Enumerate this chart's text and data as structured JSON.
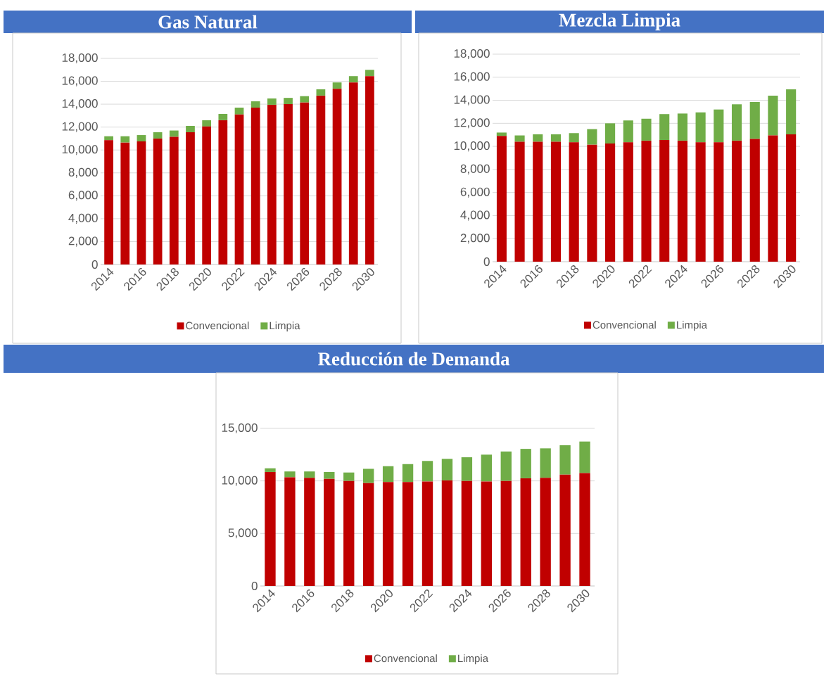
{
  "chart_data": [
    {
      "type": "bar",
      "title": "Gas Natural",
      "stacked": true,
      "grid": "y",
      "legend": "bottom",
      "categories": [
        "2014",
        null,
        "2016",
        null,
        "2018",
        null,
        "2020",
        null,
        "2022",
        null,
        "2024",
        null,
        "2026",
        null,
        "2028",
        null,
        "2030"
      ],
      "ylim": [
        0,
        18000
      ],
      "yticks": [
        0,
        {
          "value": 2000,
          "label": "2,000"
        },
        {
          "value": 4000,
          "label": "4,000"
        },
        {
          "value": 6000,
          "label": "6,000"
        },
        {
          "value": 8000,
          "label": "8,000"
        },
        {
          "value": 10000,
          "label": "10,000"
        },
        {
          "value": 12000,
          "label": "12,000"
        },
        {
          "value": 14000,
          "label": "14,000"
        },
        {
          "value": 16000,
          "label": "16,000"
        },
        {
          "value": 18000,
          "label": "18,000"
        }
      ],
      "series": [
        {
          "name": "Convencional",
          "color": "#c00000",
          "values": [
            10850,
            10650,
            10750,
            11000,
            11150,
            11550,
            12050,
            12600,
            13100,
            13700,
            13950,
            14000,
            14150,
            14750,
            15350,
            15900,
            16450
          ]
        },
        {
          "name": "Limpia",
          "color": "#70ad47",
          "values": [
            350,
            550,
            550,
            550,
            550,
            550,
            550,
            550,
            600,
            550,
            550,
            550,
            550,
            550,
            550,
            550,
            550
          ]
        }
      ]
    },
    {
      "type": "bar",
      "title": "Mezcla Limpia",
      "stacked": true,
      "grid": "y",
      "legend": "bottom",
      "categories": [
        "2014",
        null,
        "2016",
        null,
        "2018",
        null,
        "2020",
        null,
        "2022",
        null,
        "2024",
        null,
        "2026",
        null,
        "2028",
        null,
        "2030"
      ],
      "ylim": [
        0,
        18000
      ],
      "yticks": [
        0,
        {
          "value": 2000,
          "label": "2,000"
        },
        {
          "value": 4000,
          "label": "4,000"
        },
        {
          "value": 6000,
          "label": "6,000"
        },
        {
          "value": 8000,
          "label": "8,000"
        },
        {
          "value": 10000,
          "label": "10,000"
        },
        {
          "value": 12000,
          "label": "12,000"
        },
        {
          "value": 14000,
          "label": "14,000"
        },
        {
          "value": 16000,
          "label": "16,000"
        },
        {
          "value": 18000,
          "label": "18,000"
        }
      ],
      "series": [
        {
          "name": "Convencional",
          "color": "#c00000",
          "values": [
            10900,
            10400,
            10400,
            10400,
            10350,
            10150,
            10250,
            10350,
            10500,
            10550,
            10500,
            10350,
            10350,
            10500,
            10650,
            10950,
            11050
          ]
        },
        {
          "name": "Limpia",
          "color": "#70ad47",
          "values": [
            300,
            550,
            650,
            650,
            800,
            1350,
            1750,
            1900,
            1900,
            2250,
            2350,
            2600,
            2850,
            3150,
            3200,
            3450,
            3900
          ]
        }
      ]
    },
    {
      "type": "bar",
      "title": "Reducción de Demanda",
      "stacked": true,
      "grid": "y",
      "legend": "bottom",
      "categories": [
        "2014",
        null,
        "2016",
        null,
        "2018",
        null,
        "2020",
        null,
        "2022",
        null,
        "2024",
        null,
        "2026",
        null,
        "2028",
        null,
        "2030"
      ],
      "ylim": [
        0,
        15000
      ],
      "yticks": [
        0,
        {
          "value": 5000,
          "label": "5,000"
        },
        {
          "value": 10000,
          "label": "10,000"
        },
        {
          "value": 15000,
          "label": "15,000"
        }
      ],
      "series": [
        {
          "name": "Convencional",
          "color": "#c00000",
          "values": [
            10850,
            10350,
            10300,
            10200,
            10000,
            9800,
            9900,
            9900,
            9950,
            10050,
            10000,
            9950,
            10000,
            10250,
            10300,
            10600,
            10750
          ]
        },
        {
          "name": "Limpia",
          "color": "#70ad47",
          "values": [
            350,
            550,
            600,
            650,
            800,
            1350,
            1500,
            1700,
            1950,
            2050,
            2250,
            2550,
            2800,
            2800,
            2800,
            2800,
            3000
          ]
        }
      ]
    }
  ]
}
